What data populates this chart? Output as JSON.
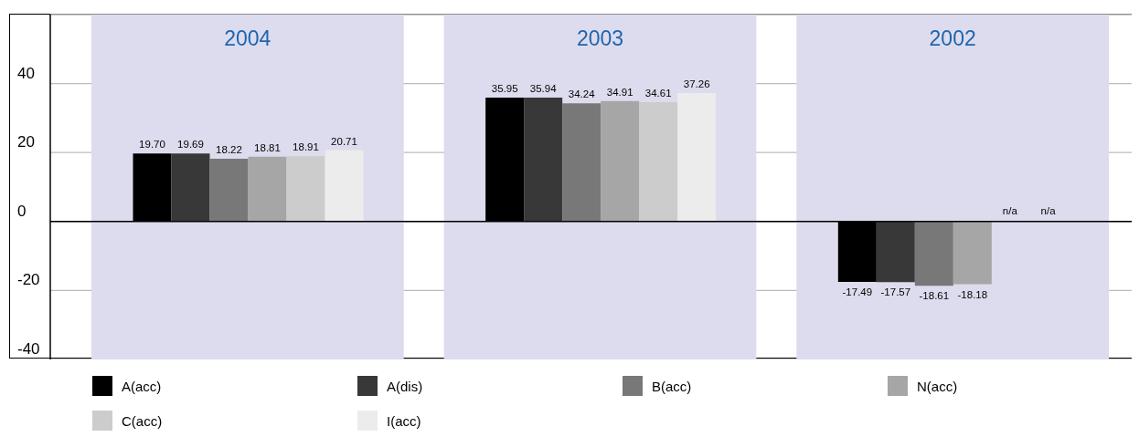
{
  "chart_data": {
    "type": "bar",
    "categories": [
      "2004",
      "2003",
      "2002"
    ],
    "series": [
      {
        "name": "A(acc)",
        "color": "#000000",
        "values": [
          19.7,
          35.95,
          -17.49
        ],
        "value_labels": [
          "19.70",
          "35.95",
          "-17.49"
        ]
      },
      {
        "name": "A(dis)",
        "color": "#383838",
        "values": [
          19.69,
          35.94,
          -17.57
        ],
        "value_labels": [
          "19.69",
          "35.94",
          "-17.57"
        ]
      },
      {
        "name": "B(acc)",
        "color": "#787878",
        "values": [
          18.22,
          34.24,
          -18.61
        ],
        "value_labels": [
          "18.22",
          "34.24",
          "-18.61"
        ]
      },
      {
        "name": "N(acc)",
        "color": "#a6a6a6",
        "values": [
          18.81,
          34.91,
          -18.18
        ],
        "value_labels": [
          "18.81",
          "34.91",
          "-18.18"
        ]
      },
      {
        "name": "C(acc)",
        "color": "#cccccc",
        "values": [
          18.91,
          34.61,
          null
        ],
        "value_labels": [
          "18.91",
          "34.61",
          "n/a"
        ]
      },
      {
        "name": "I(acc)",
        "color": "#ececec",
        "values": [
          20.71,
          37.26,
          null
        ],
        "value_labels": [
          "20.71",
          "37.26",
          "n/a"
        ]
      }
    ],
    "ylim": [
      -40,
      60
    ],
    "yticks": [
      -40,
      -20,
      0,
      20,
      40
    ],
    "grid": "y",
    "legend": "bottom"
  }
}
